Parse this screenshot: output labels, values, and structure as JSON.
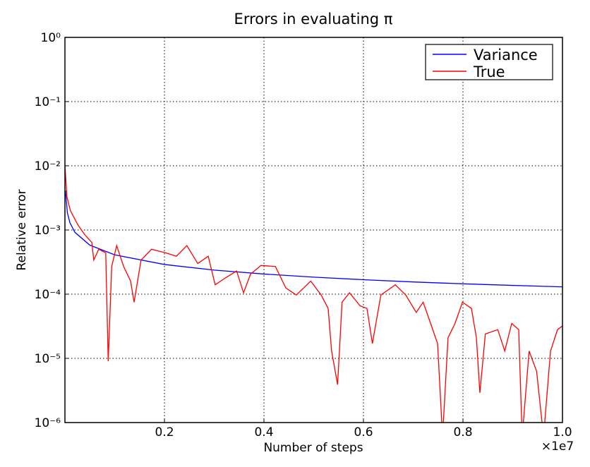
{
  "chart_data": {
    "type": "line",
    "title": "Errors in evaluating π",
    "xlabel": "Number of steps",
    "ylabel": "Relative error",
    "x_offset_label": "×1e7",
    "xlim": [
      0,
      1
    ],
    "xticks": [
      0.2,
      0.4,
      0.6,
      0.8,
      {
        "value": 1,
        "label": "1.0"
      }
    ],
    "ylim": [
      1e-06,
      1
    ],
    "yscale": "log",
    "yticks": [
      {
        "value": 1,
        "label": "10⁰"
      },
      {
        "value": 0.1,
        "label": "10⁻¹"
      },
      {
        "value": 0.01,
        "label": "10⁻²"
      },
      {
        "value": 0.001,
        "label": "10⁻³"
      },
      {
        "value": 0.0001,
        "label": "10⁻⁴"
      },
      {
        "value": 1e-05,
        "label": "10⁻⁵"
      },
      {
        "value": 1e-06,
        "label": "10⁻⁶"
      }
    ],
    "grid": true,
    "legend": "upper right",
    "series": [
      {
        "name": "Variance",
        "color": "#0000ff",
        "x": [
          0.001,
          0.005,
          0.01,
          0.02,
          0.05,
          0.1,
          0.2,
          0.3,
          0.4,
          0.5,
          0.6,
          0.7,
          0.8,
          0.9,
          1.0
        ],
        "values": [
          0.0041,
          0.00184,
          0.0013,
          0.00092,
          0.00058,
          0.00041,
          0.00029,
          0.000237,
          0.000206,
          0.000184,
          0.000168,
          0.000155,
          0.000145,
          0.000137,
          0.00013
        ]
      },
      {
        "name": "True",
        "color": "#ff0000",
        "x": [
          0.0,
          0.004,
          0.011,
          0.026,
          0.04,
          0.054,
          0.058,
          0.068,
          0.082,
          0.087,
          0.094,
          0.104,
          0.118,
          0.132,
          0.139,
          0.153,
          0.174,
          0.203,
          0.224,
          0.245,
          0.267,
          0.288,
          0.302,
          0.323,
          0.345,
          0.359,
          0.373,
          0.394,
          0.423,
          0.444,
          0.465,
          0.494,
          0.515,
          0.529,
          0.536,
          0.548,
          0.557,
          0.572,
          0.593,
          0.607,
          0.618,
          0.635,
          0.664,
          0.685,
          0.706,
          0.72,
          0.735,
          0.749,
          0.759,
          0.77,
          0.784,
          0.799,
          0.817,
          0.827,
          0.834,
          0.845,
          0.87,
          0.884,
          0.898,
          0.912,
          0.919,
          0.933,
          0.948,
          0.962,
          0.976,
          0.99,
          1.0
        ],
        "values": [
          0.01,
          0.0033,
          0.002,
          0.0012,
          0.00084,
          0.00064,
          0.00034,
          0.0005,
          0.00044,
          9e-06,
          0.00027,
          0.00057,
          0.00027,
          0.00016,
          7.5e-05,
          0.00034,
          0.0005,
          0.00044,
          0.00039,
          0.00057,
          0.0003,
          0.00039,
          0.00014,
          0.00018,
          0.00023,
          0.000105,
          0.000205,
          0.00028,
          0.00027,
          0.000125,
          9.7e-05,
          0.00016,
          9.7e-05,
          6e-05,
          1.3e-05,
          3.9e-06,
          7.5e-05,
          0.000105,
          6.6e-05,
          6e-05,
          1.7e-05,
          9.7e-05,
          0.00014,
          9.7e-05,
          5.2e-05,
          7.5e-05,
          3.5e-05,
          1.7e-05,
          6e-07,
          2.1e-05,
          3.5e-05,
          7.5e-05,
          6e-05,
          2.1e-05,
          2.9e-06,
          2.4e-05,
          2.8e-05,
          1.3e-05,
          3.5e-05,
          2.8e-05,
          6e-07,
          1.3e-05,
          6.3e-06,
          6e-07,
          1.3e-05,
          2.8e-05,
          3.2e-05
        ]
      }
    ]
  }
}
